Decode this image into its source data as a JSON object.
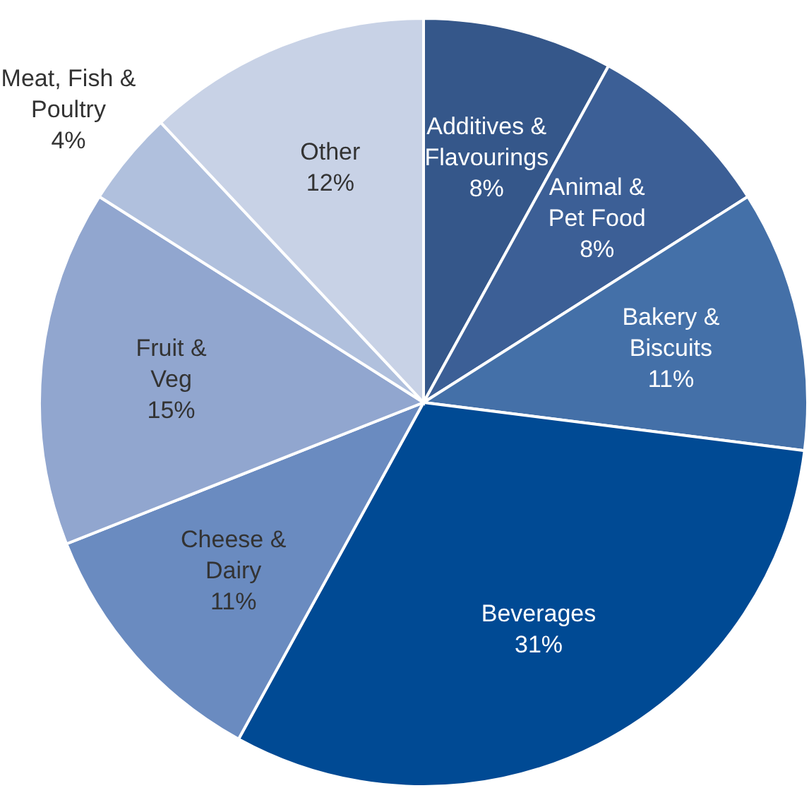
{
  "chart_data": {
    "type": "pie",
    "categories": [
      "Additives &\nFlavourings",
      "Animal &\nPet Food",
      "Bakery &\nBiscuits",
      "Beverages",
      "Cheese &\nDairy",
      "Fruit &\nVeg",
      "Meat, Fish &\nPoultry",
      "Other"
    ],
    "values": [
      8,
      8,
      11,
      31,
      11,
      15,
      4,
      12
    ],
    "colors": [
      "#35578a",
      "#3c5f96",
      "#4470a8",
      "#004a94",
      "#6a8bc0",
      "#91a6cf",
      "#b0c0dd",
      "#c8d2e6"
    ],
    "value_labels": [
      "8%",
      "8%",
      "11%",
      "31%",
      "11%",
      "15%",
      "4%",
      "12%"
    ]
  }
}
